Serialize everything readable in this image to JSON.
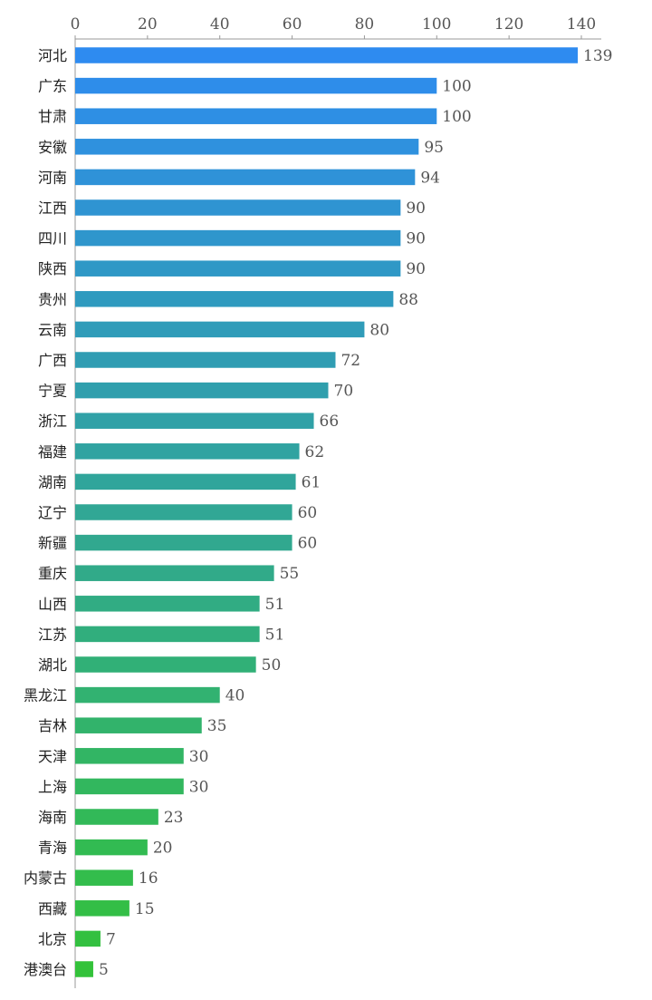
{
  "chart_data": {
    "type": "bar",
    "orientation": "horizontal",
    "title": "",
    "xlabel": "",
    "ylabel": "",
    "xlim": [
      0,
      140
    ],
    "x_ticks": [
      0,
      20,
      40,
      60,
      80,
      100,
      120,
      140
    ],
    "x_axis_position": "top",
    "grid": false,
    "legend": "none",
    "data_labels": true,
    "color_gradient": {
      "start": "#2E8BF0",
      "end": "#33C23A"
    },
    "categories": [
      "河北",
      "广东",
      "甘肃",
      "安徽",
      "河南",
      "江西",
      "四川",
      "陕西",
      "贵州",
      "云南",
      "广西",
      "宁夏",
      "浙江",
      "福建",
      "湖南",
      "辽宁",
      "新疆",
      "重庆",
      "山西",
      "江苏",
      "湖北",
      "黑龙江",
      "吉林",
      "天津",
      "上海",
      "海南",
      "青海",
      "内蒙古",
      "西藏",
      "北京",
      "港澳台"
    ],
    "values": [
      139,
      100,
      100,
      95,
      94,
      90,
      90,
      90,
      88,
      80,
      72,
      70,
      66,
      62,
      61,
      60,
      60,
      55,
      51,
      51,
      50,
      40,
      35,
      30,
      30,
      23,
      20,
      16,
      15,
      7,
      5
    ]
  }
}
